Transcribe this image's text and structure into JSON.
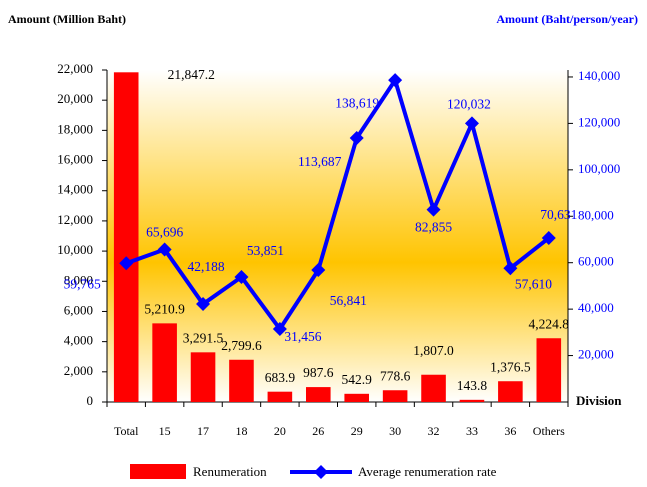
{
  "chart_data": {
    "type": "bar_line",
    "y_label": "Amount  (Million Baht)",
    "y2_label": "Amount  (Baht/person/year)",
    "x_label": "Division",
    "categories": [
      "Total",
      "15",
      "17",
      "18",
      "20",
      "26",
      "29",
      "30",
      "32",
      "33",
      "36",
      "Others"
    ],
    "series": [
      {
        "name": "Renumeration",
        "type": "bar",
        "color": "#ff0000",
        "values": [
          21847.2,
          5210.9,
          3291.5,
          2799.6,
          683.9,
          987.6,
          542.9,
          778.6,
          1807.0,
          143.8,
          1376.5,
          4224.8
        ],
        "value_labels": [
          "21,847.2",
          "5,210.9",
          "3,291.5",
          "2,799.6",
          "683.9",
          "987.6",
          "542.9",
          "778.6",
          "1,807.0",
          "143.8",
          "1,376.5",
          "4,224.8"
        ]
      },
      {
        "name": "Average renumeration rate",
        "type": "line",
        "color": "#0000ff",
        "axis": "y2",
        "values": [
          59765,
          65696,
          42188,
          53851,
          31456,
          56841,
          113687,
          138619,
          82855,
          120032,
          57610,
          70631
        ],
        "value_labels": [
          "59,765",
          "65,696",
          "42,188",
          "53,851",
          "31,456",
          "56,841",
          "113,687",
          "138,619",
          "82,855",
          "120,032",
          "57,610",
          "70,631"
        ]
      }
    ],
    "ylim": [
      0,
      22000
    ],
    "yticks": [
      0,
      {
        "value": 2000,
        "label": "2,000"
      },
      {
        "value": 4000,
        "label": "4,000"
      },
      {
        "value": 6000,
        "label": "6,000"
      },
      {
        "value": 8000,
        "label": "8,000"
      },
      {
        "value": 10000,
        "label": "10,000"
      },
      {
        "value": 12000,
        "label": "12,000"
      },
      {
        "value": 14000,
        "label": "14,000"
      },
      {
        "value": 16000,
        "label": "16,000"
      },
      {
        "value": 18000,
        "label": "18,000"
      },
      {
        "value": 20000,
        "label": "20,000"
      },
      {
        "value": 22000,
        "label": "22,000"
      }
    ],
    "y2lim": [
      0,
      143000
    ],
    "y2ticks": [
      {
        "value": 20000,
        "label": "20,000"
      },
      {
        "value": 40000,
        "label": "40,000"
      },
      {
        "value": 60000,
        "label": "60,000"
      },
      {
        "value": 80000,
        "label": "80,000"
      },
      {
        "value": 100000,
        "label": "100,000"
      },
      {
        "value": 120000,
        "label": "120,000"
      },
      {
        "value": 140000,
        "label": "140,000"
      }
    ]
  }
}
